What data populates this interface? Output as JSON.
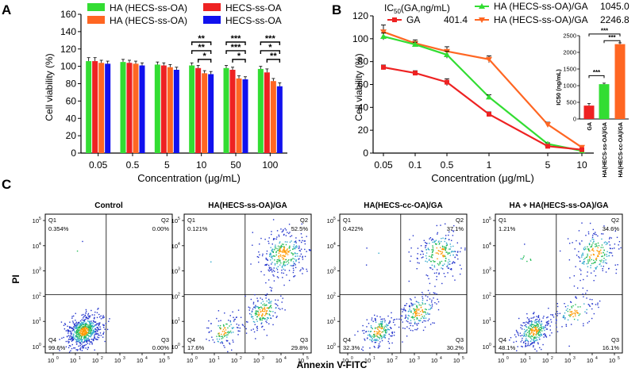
{
  "panel_labels": {
    "a": "A",
    "b": "B",
    "c": "C"
  },
  "chart_data": [
    {
      "type": "bar",
      "title": "",
      "xlabel": "Concentration (μg/mL)",
      "ylabel": "Cell viability (%)",
      "ylim": [
        0,
        160
      ],
      "yticks": [
        "0",
        "20",
        "40",
        "60",
        "80",
        "100",
        "120",
        "140",
        "160"
      ],
      "categories": [
        "0.05",
        "0.5",
        "5",
        "10",
        "50",
        "100"
      ],
      "series": [
        {
          "name": "HA (HECS-ss-OA)",
          "color": "#33dd33",
          "values": [
            106,
            105,
            102,
            101,
            98,
            97
          ],
          "errors": [
            4,
            3,
            3,
            3,
            3,
            3
          ]
        },
        {
          "name": "HECS-ss-OA",
          "color": "#ee2222",
          "values": [
            106,
            104,
            101,
            98,
            96,
            93
          ],
          "errors": [
            4,
            3,
            3,
            3,
            3,
            4
          ]
        },
        {
          "name": "HA (HECS-ss-OA)",
          "color": "#ff6622",
          "values": [
            104,
            103,
            99,
            92,
            86,
            83
          ],
          "errors": [
            3,
            3,
            3,
            3,
            3,
            3
          ]
        },
        {
          "name": "HECS-ss-OA",
          "color": "#1111ee",
          "values": [
            103,
            101,
            96,
            91,
            85,
            77
          ],
          "errors": [
            3,
            3,
            3,
            3,
            3,
            4
          ]
        }
      ],
      "significance": [
        {
          "category": "10",
          "labels": [
            "*",
            "**",
            "**"
          ]
        },
        {
          "category": "50",
          "labels": [
            "*",
            "***",
            "***"
          ]
        },
        {
          "category": "100",
          "labels": [
            "**",
            "*",
            "***"
          ]
        }
      ]
    },
    {
      "type": "line",
      "title": "",
      "legend_title": "IC50(GA,ng/mL)",
      "xlabel": "Concentration (μg/mL)",
      "ylabel": "Cell viability (%)",
      "ylim": [
        0,
        120
      ],
      "yticks": [
        "0",
        "20",
        "40",
        "60",
        "80",
        "100",
        "120"
      ],
      "x": [
        "0.05",
        "0.1",
        "0.5",
        "1",
        "5",
        "10"
      ],
      "series": [
        {
          "name": "GA",
          "ic50": "401.4",
          "color": "#ee2222",
          "marker": "square",
          "values": [
            75,
            70,
            62,
            34,
            6,
            3
          ],
          "errors": [
            2,
            2,
            3,
            2,
            1,
            1
          ]
        },
        {
          "name": "HA (HECS-ss-OA)/GA",
          "ic50": "1045.0",
          "color": "#33dd33",
          "marker": "triangle",
          "values": [
            102,
            95,
            86,
            49,
            8,
            2
          ],
          "errors": [
            3,
            2,
            3,
            2,
            1,
            1
          ]
        },
        {
          "name": "HA (HECS-ss-OA)/GA",
          "ic50": "2246.8",
          "color": "#ff6622",
          "marker": "triangle-down",
          "values": [
            106,
            96,
            89,
            82,
            25,
            5
          ],
          "errors": [
            6,
            3,
            4,
            3,
            2,
            1
          ]
        }
      ]
    },
    {
      "type": "bar",
      "title": "",
      "xlabel": "",
      "ylabel": "IC50 (ng/mL)",
      "ylim": [
        0,
        2500
      ],
      "yticks": [
        "0",
        "500",
        "1000",
        "1500",
        "2000",
        "2500"
      ],
      "categories": [
        "GA",
        "HA(HECS-ss-OA)/GA",
        "HA(HECS-cc-OA)/GA"
      ],
      "values": [
        401.4,
        1045.0,
        2246.8
      ],
      "errors": [
        60,
        30,
        40
      ],
      "colors": [
        "#ee2222",
        "#33dd33",
        "#ff6622"
      ],
      "significance": [
        "***",
        "***",
        "***"
      ]
    },
    {
      "type": "scatter",
      "xlabel": "Annexin V-FITC",
      "ylabel": "PI",
      "axis_scale": "log",
      "xticks": [
        "10",
        "10",
        "10",
        "10",
        "10",
        "10"
      ],
      "tick_exponents": [
        "0",
        "1",
        "2",
        "3",
        "4",
        "5"
      ],
      "quadrant_names": [
        "Q1",
        "Q2",
        "Q3",
        "Q4"
      ],
      "panels": [
        {
          "title": "Control",
          "quadrants": {
            "Q1": "0.354%",
            "Q2": "0.00%",
            "Q3": "0.00%",
            "Q4": "99.6%"
          }
        },
        {
          "title": "HA(HECS-ss-OA)/GA",
          "quadrants": {
            "Q1": "0.121%",
            "Q2": "52.5%",
            "Q3": "29.8%",
            "Q4": "17.6%"
          }
        },
        {
          "title": "HA(HECS-cc-OA)/GA",
          "quadrants": {
            "Q1": "0.422%",
            "Q2": "37.1%",
            "Q3": "30.2%",
            "Q4": "32.3%"
          }
        },
        {
          "title": "HA + HA(HECS-ss-OA)/GA",
          "quadrants": {
            "Q1": "1.21%",
            "Q2": "34.6%",
            "Q3": "16.1%",
            "Q4": "48.1%"
          }
        }
      ]
    }
  ]
}
